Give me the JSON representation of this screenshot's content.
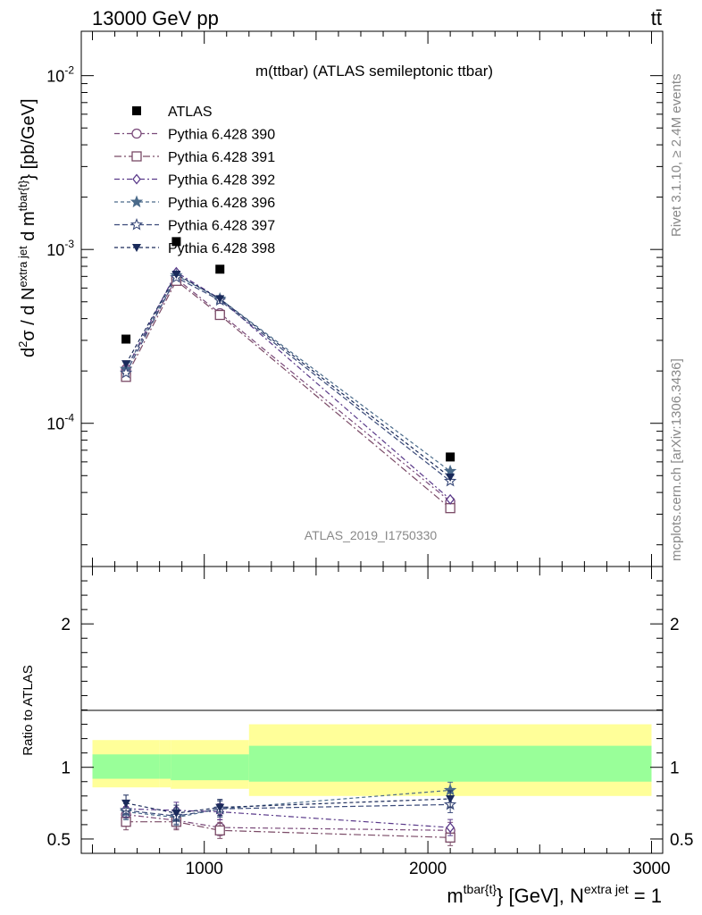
{
  "header": {
    "energy": "13000 GeV pp",
    "process": "tt̄"
  },
  "side": {
    "rivet": "Rivet 3.1.10, ≥ 2.4M events",
    "mcplots": "mcplots.cern.ch [arXiv:1306.3436]"
  },
  "chart_data": [
    {
      "type": "scatter",
      "title": "m(ttbar) (ATLAS semileptonic ttbar)",
      "watermark": "ATLAS_2019_I1750330",
      "ylabel": "d²σ / d N^{extra jet} d m^{tbar{t}} [pb/GeV]",
      "yscale": "log",
      "ylim": [
        1.5e-05,
        0.018
      ],
      "xlim": [
        450,
        3050
      ],
      "ytick_labels": [
        "10^-2",
        "10^-3",
        "10^-4"
      ],
      "legend_position": "top-left",
      "x": [
        650,
        875,
        1070,
        2100
      ],
      "series": [
        {
          "name": "ATLAS",
          "color": "#000000",
          "marker": "filled-square",
          "values": [
            0.000305,
            0.00111,
            0.00077,
            6.4e-05
          ]
        },
        {
          "name": "Pythia 6.428 390",
          "color": "#7a4a7a",
          "marker": "open-circle",
          "values": [
            0.000205,
            0.00068,
            0.00043,
            3.55e-05
          ]
        },
        {
          "name": "Pythia 6.428 391",
          "color": "#7a4a66",
          "marker": "open-square",
          "values": [
            0.000185,
            0.00066,
            0.00042,
            3.25e-05
          ]
        },
        {
          "name": "Pythia 6.428 392",
          "color": "#5a3a8a",
          "marker": "open-diamond",
          "values": [
            0.000205,
            0.00074,
            0.00052,
            3.65e-05
          ]
        },
        {
          "name": "Pythia 6.428 396",
          "color": "#4a6a8a",
          "marker": "filled-star",
          "values": [
            0.000205,
            0.00071,
            0.00052,
            5.3e-05
          ]
        },
        {
          "name": "Pythia 6.428 397",
          "color": "#3a4a7a",
          "marker": "open-star",
          "values": [
            0.000195,
            0.00069,
            0.00051,
            4.65e-05
          ]
        },
        {
          "name": "Pythia 6.428 398",
          "color": "#1a2a5a",
          "marker": "filled-triangle-down",
          "values": [
            0.00022,
            0.00072,
            0.00052,
            4.9e-05
          ]
        }
      ]
    },
    {
      "type": "scatter",
      "ylabel": "Ratio to ATLAS",
      "xlabel": "m^{tbar{t}} [GeV], N^{extra jet} = 1",
      "ylim": [
        0.4,
        2.4
      ],
      "xlim": [
        450,
        3050
      ],
      "y_ticks": [
        0.5,
        1,
        2
      ],
      "y_tick_labels": [
        "0.5",
        "1",
        "2"
      ],
      "x_ticks": [
        1000,
        2000,
        3000
      ],
      "x_tick_labels": [
        "1000",
        "2000",
        "3000"
      ],
      "uncertainty_bands": [
        {
          "x": [
            500,
            800
          ],
          "stat_sys_inner": [
            0.92,
            1.09
          ],
          "total_outer": [
            0.86,
            1.19
          ]
        },
        {
          "x": [
            800,
            850
          ],
          "stat_sys_inner": [
            0.92,
            1.09
          ],
          "total_outer": [
            0.86,
            1.19
          ]
        },
        {
          "x": [
            850,
            1200
          ],
          "stat_sys_inner": [
            0.91,
            1.09
          ],
          "total_outer": [
            0.85,
            1.19
          ]
        },
        {
          "x": [
            1200,
            3000
          ],
          "stat_sys_inner": [
            0.9,
            1.15
          ],
          "total_outer": [
            0.8,
            1.3
          ]
        }
      ],
      "band_colors": {
        "inner": "#99ff99",
        "outer": "#ffff99"
      },
      "x": [
        650,
        875,
        1070,
        2100
      ],
      "series": [
        {
          "name": "Pythia 6.428 390",
          "values": [
            0.67,
            0.63,
            0.58,
            0.56
          ]
        },
        {
          "name": "Pythia 6.428 391",
          "values": [
            0.62,
            0.62,
            0.56,
            0.51
          ]
        },
        {
          "name": "Pythia 6.428 392",
          "values": [
            0.71,
            0.7,
            0.69,
            0.58
          ]
        },
        {
          "name": "Pythia 6.428 396",
          "values": [
            0.69,
            0.65,
            0.71,
            0.84
          ]
        },
        {
          "name": "Pythia 6.428 397",
          "values": [
            0.7,
            0.66,
            0.71,
            0.74
          ]
        },
        {
          "name": "Pythia 6.428 398",
          "values": [
            0.75,
            0.68,
            0.72,
            0.78
          ]
        }
      ]
    }
  ]
}
